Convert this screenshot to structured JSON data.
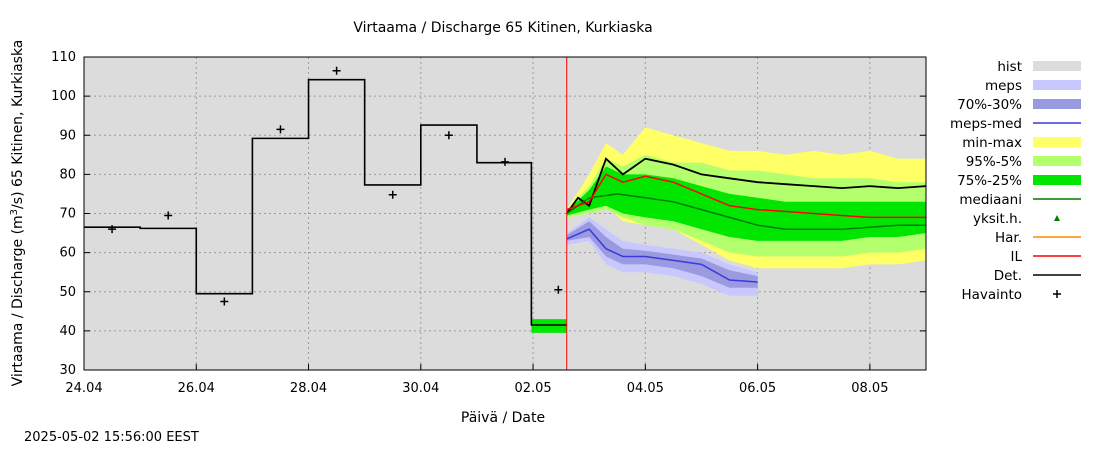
{
  "chart_data": {
    "type": "line",
    "title": "Virtaama / Discharge  65 Kitinen, Kurkiaska",
    "xlabel": "Päivä / Date",
    "ylabel_prefix": "Virtaama / Discharge (m",
    "ylabel_sup": "3",
    "ylabel_suffix": "/s)  65 Kitinen, Kurkiaska",
    "ylim": [
      30,
      110
    ],
    "xlim": [
      0,
      15
    ],
    "x_unit": "days from 24.04 00:00",
    "yticks": [
      "30",
      "40",
      "50",
      "60",
      "70",
      "80",
      "90",
      "100",
      "110"
    ],
    "xticks": [
      {
        "label": "24.04",
        "x": 0
      },
      {
        "label": "26.04",
        "x": 2
      },
      {
        "label": "28.04",
        "x": 4
      },
      {
        "label": "30.04",
        "x": 6
      },
      {
        "label": "02.05",
        "x": 8
      },
      {
        "label": "04.05",
        "x": 10
      },
      {
        "label": "06.05",
        "x": 12
      },
      {
        "label": "08.05",
        "x": 14
      }
    ],
    "grid": true,
    "forecast_start_x": 8.6,
    "legend": [
      {
        "name": "hist",
        "color": "#dcdcdc",
        "style": "box"
      },
      {
        "name": "meps",
        "color": "#c8c8ff",
        "style": "box"
      },
      {
        "name": "70%-30%",
        "color": "#9a9ae0",
        "style": "box"
      },
      {
        "name": "meps-med",
        "color": "#3a3adc",
        "style": "line"
      },
      {
        "name": "min-max",
        "color": "#ffff66",
        "style": "box"
      },
      {
        "name": "95%-5%",
        "color": "#b4ff6e",
        "style": "box"
      },
      {
        "name": "75%-25%",
        "color": "#00e600",
        "style": "box"
      },
      {
        "name": "mediaani",
        "color": "#007a00",
        "style": "line"
      },
      {
        "name": "yksit.h.",
        "color": "#008000",
        "style": "dot"
      },
      {
        "name": "Har.",
        "color": "#ff8c00",
        "style": "line"
      },
      {
        "name": "IL",
        "color": "#ff0000",
        "style": "line"
      },
      {
        "name": "Det.",
        "color": "#000000",
        "style": "line"
      },
      {
        "name": "Havainto",
        "color": "#000000",
        "style": "plus"
      }
    ],
    "series": [
      {
        "name": "Det.",
        "color": "#000000",
        "step_history": [
          [
            0,
            66.5
          ],
          [
            1,
            66.2
          ],
          [
            2,
            49.5
          ],
          [
            3,
            89.2
          ],
          [
            4,
            104.2
          ],
          [
            5,
            77.3
          ],
          [
            6,
            92.6
          ],
          [
            7,
            83
          ],
          [
            7.97,
            83
          ],
          [
            7.97,
            41.5
          ],
          [
            8.6,
            41.5
          ]
        ],
        "forecast": [
          [
            8.6,
            70
          ],
          [
            8.8,
            74
          ],
          [
            9,
            72
          ],
          [
            9.3,
            84
          ],
          [
            9.6,
            80
          ],
          [
            10,
            84
          ],
          [
            10.5,
            82.5
          ],
          [
            11,
            80
          ],
          [
            11.5,
            79
          ],
          [
            12,
            78
          ],
          [
            12.5,
            77.5
          ],
          [
            13,
            77
          ],
          [
            13.5,
            76.5
          ],
          [
            14,
            77
          ],
          [
            14.5,
            76.5
          ],
          [
            15,
            77
          ]
        ]
      },
      {
        "name": "Havainto",
        "color": "#000000",
        "points": [
          [
            0.5,
            66
          ],
          [
            1.5,
            69.5
          ],
          [
            2.5,
            47.5
          ],
          [
            3.5,
            91.5
          ],
          [
            4.5,
            106.5
          ],
          [
            5.5,
            74.8
          ],
          [
            6.5,
            90
          ],
          [
            7.5,
            83.2
          ],
          [
            8.45,
            50.5
          ]
        ]
      },
      {
        "name": "mediaani",
        "color": "#007a00",
        "points": [
          [
            8.6,
            70
          ],
          [
            9,
            74
          ],
          [
            9.5,
            75
          ],
          [
            10,
            74
          ],
          [
            10.5,
            73
          ],
          [
            11,
            71
          ],
          [
            11.5,
            69
          ],
          [
            12,
            67
          ],
          [
            12.5,
            66
          ],
          [
            13,
            66
          ],
          [
            13.5,
            66
          ],
          [
            14,
            66.5
          ],
          [
            14.5,
            67
          ],
          [
            15,
            67
          ]
        ]
      },
      {
        "name": "IL",
        "color": "#ff0000",
        "points": [
          [
            8.6,
            71
          ],
          [
            9,
            73
          ],
          [
            9.3,
            80
          ],
          [
            9.6,
            78
          ],
          [
            10,
            79.5
          ],
          [
            10.5,
            78
          ],
          [
            11,
            75
          ],
          [
            11.5,
            72
          ],
          [
            12,
            71
          ],
          [
            12.5,
            70.5
          ],
          [
            13,
            70
          ],
          [
            13.5,
            69.5
          ],
          [
            14,
            69
          ],
          [
            14.5,
            69
          ],
          [
            15,
            69
          ]
        ]
      },
      {
        "name": "meps-med",
        "color": "#3a3adc",
        "points": [
          [
            8.6,
            63.5
          ],
          [
            9,
            66
          ],
          [
            9.3,
            61
          ],
          [
            9.6,
            59
          ],
          [
            10,
            59
          ],
          [
            10.5,
            58
          ],
          [
            11,
            57
          ],
          [
            11.5,
            53
          ],
          [
            12,
            52.5
          ]
        ]
      }
    ],
    "bands": {
      "x": [
        8.6,
        9.0,
        9.3,
        9.6,
        10.0,
        10.5,
        11.0,
        11.5,
        12.0,
        12.5,
        13.0,
        13.5,
        14.0,
        14.5,
        15.0
      ],
      "min_max": [
        [
          69,
          71
        ],
        [
          70,
          80
        ],
        [
          72,
          88
        ],
        [
          68,
          85
        ],
        [
          67,
          92
        ],
        [
          66,
          90
        ],
        [
          62,
          88
        ],
        [
          58,
          86
        ],
        [
          56,
          86
        ],
        [
          56,
          85
        ],
        [
          56,
          86
        ],
        [
          56,
          85
        ],
        [
          57,
          86
        ],
        [
          57,
          84
        ],
        [
          58,
          84
        ]
      ],
      "p95_5": [
        [
          69,
          71
        ],
        [
          70,
          77
        ],
        [
          71,
          84
        ],
        [
          69,
          82
        ],
        [
          67,
          85
        ],
        [
          66,
          83
        ],
        [
          63,
          83
        ],
        [
          60,
          81
        ],
        [
          59,
          81
        ],
        [
          59,
          80
        ],
        [
          59,
          79
        ],
        [
          59,
          79
        ],
        [
          60,
          79
        ],
        [
          60,
          78
        ],
        [
          61,
          78
        ]
      ],
      "p75_25": [
        [
          69.5,
          70.5
        ],
        [
          71,
          76
        ],
        [
          72,
          82
        ],
        [
          70,
          80
        ],
        [
          69,
          80
        ],
        [
          68,
          79
        ],
        [
          66,
          77
        ],
        [
          64,
          75
        ],
        [
          63,
          74
        ],
        [
          63,
          73
        ],
        [
          63,
          73
        ],
        [
          63,
          73
        ],
        [
          64,
          73
        ],
        [
          64,
          73
        ],
        [
          65,
          73
        ]
      ],
      "meps_x": [
        8.6,
        9.0,
        9.3,
        9.6,
        10.0,
        10.5,
        11.0,
        11.5,
        12.0
      ],
      "meps": [
        [
          62,
          65
        ],
        [
          63,
          69
        ],
        [
          57,
          66
        ],
        [
          55,
          63
        ],
        [
          55,
          62
        ],
        [
          54,
          61
        ],
        [
          52,
          60
        ],
        [
          49,
          57
        ],
        [
          49,
          55
        ]
      ],
      "meps_70_30": [
        [
          63,
          64.5
        ],
        [
          64,
          68
        ],
        [
          59,
          64
        ],
        [
          57,
          61
        ],
        [
          57,
          60.5
        ],
        [
          56,
          59.5
        ],
        [
          54,
          58.5
        ],
        [
          51,
          55.5
        ],
        [
          51,
          54
        ]
      ]
    },
    "history_bands_at_gap": {
      "x": [
        7.97,
        8.6
      ],
      "lo": 39.5,
      "hi": 43
    }
  },
  "timestamp": "2025-05-02 15:56:00 EEST"
}
